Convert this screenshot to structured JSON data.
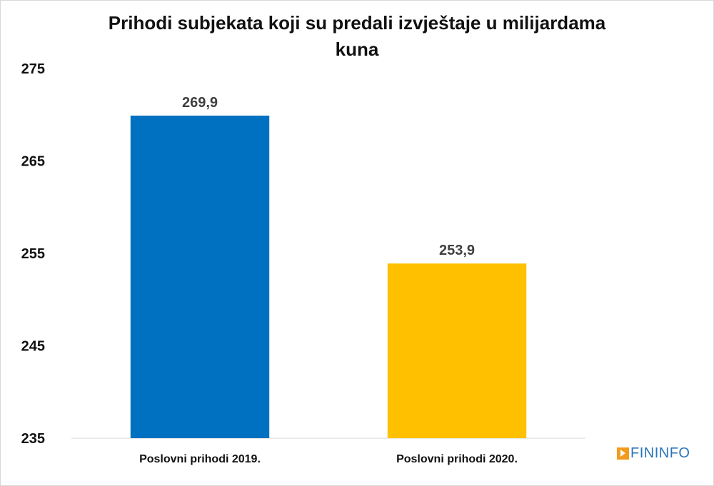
{
  "chart_data": {
    "type": "bar",
    "title_lines": [
      "Prihodi subjekata koji su predali izvještaje u milijardama",
      "kuna"
    ],
    "categories": [
      "Poslovni prihodi 2019.",
      "Poslovni prihodi 2020."
    ],
    "values": [
      269.9,
      253.9
    ],
    "value_labels": [
      "269,9",
      "253,9"
    ],
    "colors": [
      "#0070c0",
      "#ffc000"
    ],
    "yticks": [
      235,
      245,
      255,
      265,
      275
    ],
    "ylim": [
      235,
      275
    ],
    "grid": false,
    "legend": "none"
  },
  "watermark": {
    "text": "FININFO",
    "mark_color": "#f29b1d",
    "text_color": "#2a74b8"
  }
}
